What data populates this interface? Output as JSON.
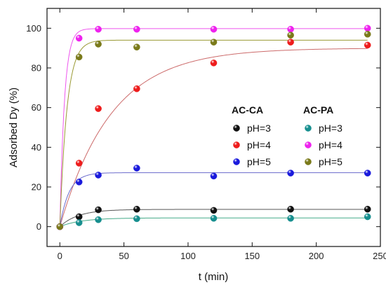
{
  "chart_data": {
    "type": "scatter",
    "title": "",
    "xlabel": "t (min)",
    "ylabel": "Adsorbed Dy (%)",
    "xlim": [
      -10,
      250
    ],
    "ylim": [
      -10,
      110
    ],
    "xticks": [
      0,
      50,
      100,
      150,
      200,
      250
    ],
    "yticks": [
      0,
      20,
      40,
      60,
      80,
      100
    ],
    "grid": false,
    "legend_placement": "center-right",
    "legend_groups": [
      {
        "title": "AC-CA",
        "series": [
          0,
          1,
          2
        ]
      },
      {
        "title": "AC-PA",
        "series": [
          3,
          4,
          5
        ]
      }
    ],
    "series": [
      {
        "name": "pH=3",
        "group": "AC-CA",
        "color": "#111111",
        "line_color": "#555555",
        "x": [
          0,
          15,
          30,
          60,
          120,
          180,
          240
        ],
        "y": [
          0,
          5,
          8.5,
          8.8,
          8.2,
          8.8,
          8.8
        ],
        "fit": {
          "qmax": 8.7,
          "k": 0.07
        }
      },
      {
        "name": "pH=4",
        "group": "AC-CA",
        "color": "#ee1c1c",
        "line_color": "#cc6a6a",
        "x": [
          0,
          15,
          30,
          60,
          120,
          180,
          240
        ],
        "y": [
          0,
          32,
          59.5,
          69.5,
          82.5,
          93,
          91.5
        ],
        "fit": {
          "qmax": 90,
          "k": 0.025
        }
      },
      {
        "name": "pH=5",
        "group": "AC-CA",
        "color": "#1a1adc",
        "line_color": "#6a6acc",
        "x": [
          0,
          15,
          30,
          60,
          120,
          180,
          240
        ],
        "y": [
          0,
          22.5,
          26,
          29.5,
          25.5,
          27,
          27
        ],
        "fit": {
          "qmax": 27.2,
          "k": 0.14
        }
      },
      {
        "name": "pH=3",
        "group": "AC-PA",
        "color": "#178f8f",
        "line_color": "#44aa88",
        "x": [
          0,
          15,
          30,
          60,
          120,
          180,
          240
        ],
        "y": [
          0,
          2,
          3.5,
          4,
          4.2,
          4.2,
          5
        ],
        "fit": {
          "qmax": 4.4,
          "k": 0.06
        }
      },
      {
        "name": "pH=4",
        "group": "AC-PA",
        "color": "#ee22ee",
        "line_color": "#ee55ee",
        "x": [
          0,
          15,
          30,
          60,
          120,
          180,
          240
        ],
        "y": [
          0,
          95,
          99.5,
          99.5,
          99.5,
          99.5,
          100
        ],
        "fit": {
          "qmax": 99.8,
          "k": 0.28
        }
      },
      {
        "name": "pH=5",
        "group": "AC-PA",
        "color": "#7a7a1a",
        "line_color": "#999933",
        "x": [
          0,
          15,
          30,
          60,
          120,
          180,
          240
        ],
        "y": [
          0,
          85.5,
          92,
          90.5,
          93,
          96.5,
          97
        ],
        "fit": {
          "qmax": 94,
          "k": 0.18
        }
      }
    ]
  }
}
